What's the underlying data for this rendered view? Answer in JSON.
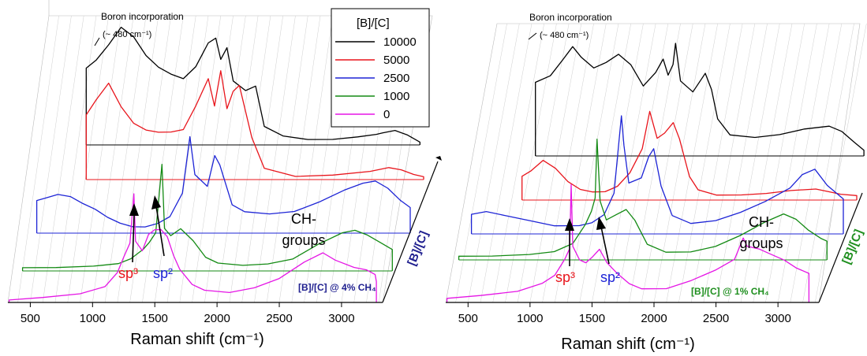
{
  "chart_data": [
    {
      "type": "line",
      "panel": "left",
      "xlabel": "Raman shift (cm⁻¹)",
      "zlabel": "[B]/[C]",
      "xticks": [
        500,
        1000,
        1500,
        2000,
        2500,
        3000
      ],
      "xlim": [
        320,
        3330
      ],
      "legend_title": "[B]/[C]",
      "legend_placement": "top-right",
      "condition_label": "[B]/[C] @ 4% CH₄",
      "condition_color": "#1f1f8f",
      "zlabel_color": "#1f1f8f",
      "annotations": {
        "boron_line1": "Boron incorporation",
        "boron_line2": "(~ 480 cm⁻¹)",
        "sp3": "sp³",
        "sp2": "sp²",
        "ch_line1": "CH-",
        "ch_line2": "groups"
      },
      "series": [
        {
          "name": "10000",
          "color": "#000000",
          "x": [
            620,
            700,
            800,
            900,
            1000,
            1100,
            1200,
            1300,
            1400,
            1500,
            1600,
            1660,
            1700,
            1750,
            1800,
            1900,
            1980,
            2050,
            2200,
            2400,
            2600,
            2800,
            2950,
            3000,
            3100,
            3200,
            3300
          ],
          "y": [
            0.65,
            0.72,
            0.85,
            1.0,
            0.92,
            0.76,
            0.66,
            0.6,
            0.56,
            0.66,
            0.86,
            0.9,
            0.72,
            0.82,
            0.54,
            0.46,
            0.5,
            0.16,
            0.08,
            0.05,
            0.05,
            0.07,
            0.09,
            0.1,
            0.12,
            0.08,
            0.02
          ]
        },
        {
          "name": "5000",
          "color": "#e8141b",
          "x": [
            620,
            700,
            800,
            900,
            1000,
            1100,
            1200,
            1300,
            1400,
            1500,
            1600,
            1650,
            1700,
            1750,
            1800,
            1850,
            1950,
            2050,
            2300,
            2600,
            2900,
            3050,
            3150,
            3250,
            3330
          ],
          "y": [
            0.55,
            0.68,
            0.82,
            0.62,
            0.48,
            0.42,
            0.4,
            0.4,
            0.42,
            0.62,
            0.85,
            0.62,
            0.92,
            0.6,
            0.75,
            0.8,
            0.36,
            0.1,
            0.03,
            0.04,
            0.07,
            0.1,
            0.08,
            0.04,
            0.02
          ]
        },
        {
          "name": "2500",
          "color": "#1d24d6",
          "x": [
            330,
            400,
            500,
            600,
            700,
            800,
            900,
            1000,
            1100,
            1200,
            1300,
            1400,
            1500,
            1560,
            1600,
            1700,
            1760,
            1800,
            1900,
            2000,
            2200,
            2400,
            2600,
            2800,
            2950,
            3050,
            3150,
            3250,
            3330
          ],
          "y": [
            0.28,
            0.3,
            0.33,
            0.31,
            0.25,
            0.2,
            0.13,
            0.08,
            0.05,
            0.05,
            0.08,
            0.14,
            0.34,
            0.82,
            0.5,
            0.4,
            0.66,
            0.58,
            0.24,
            0.18,
            0.16,
            0.18,
            0.26,
            0.36,
            0.42,
            0.44,
            0.38,
            0.28,
            0.22
          ]
        },
        {
          "name": "1000",
          "color": "#138a13",
          "x": [
            330,
            600,
            900,
            1100,
            1200,
            1300,
            1350,
            1400,
            1450,
            1470,
            1520,
            1600,
            1700,
            1800,
            1900,
            2100,
            2300,
            2500,
            2700,
            2900,
            3000,
            3100,
            3200,
            3300
          ],
          "y": [
            0.03,
            0.03,
            0.04,
            0.06,
            0.1,
            0.18,
            0.24,
            0.32,
            0.9,
            0.36,
            0.3,
            0.36,
            0.26,
            0.12,
            0.07,
            0.05,
            0.06,
            0.1,
            0.22,
            0.32,
            0.34,
            0.3,
            0.24,
            0.18
          ]
        },
        {
          "name": "0",
          "color": "#e516e5",
          "x": [
            330,
            600,
            900,
            1100,
            1200,
            1250,
            1300,
            1332,
            1345,
            1400,
            1450,
            1500,
            1550,
            1600,
            1650,
            1700,
            1800,
            1900,
            2100,
            2300,
            2500,
            2700,
            2850,
            2950,
            3100,
            3200,
            3270,
            3280
          ],
          "y": [
            0.02,
            0.04,
            0.07,
            0.13,
            0.25,
            0.38,
            0.5,
            0.92,
            0.52,
            0.44,
            0.58,
            0.62,
            0.62,
            0.56,
            0.4,
            0.28,
            0.15,
            0.1,
            0.08,
            0.12,
            0.2,
            0.34,
            0.42,
            0.36,
            0.3,
            0.28,
            0.24,
            0.18
          ]
        }
      ]
    },
    {
      "type": "line",
      "panel": "right",
      "xlabel": "Raman shift (cm⁻¹)",
      "zlabel": "[B]/[C]",
      "xticks": [
        500,
        1000,
        1500,
        2000,
        2500,
        3000
      ],
      "xlim": [
        320,
        3330
      ],
      "condition_label": "[B]/[C] @ 1% CH₄",
      "condition_color": "#1f8f1f",
      "zlabel_color": "#1f8f1f",
      "annotations": {
        "boron_line1": "Boron incorporation",
        "boron_line2": "(~ 480 cm⁻¹)",
        "sp3": "sp³",
        "sp2": "sp²",
        "ch_line1": "CH-",
        "ch_line2": "groups"
      },
      "series": [
        {
          "name": "10000",
          "color": "#000000",
          "x": [
            630,
            750,
            850,
            930,
            1000,
            1100,
            1200,
            1300,
            1400,
            1500,
            1600,
            1660,
            1700,
            1740,
            1760,
            1800,
            1900,
            2000,
            2050,
            2100,
            2200,
            2400,
            2600,
            2800,
            3000,
            3100,
            3200,
            3280
          ],
          "y": [
            0.55,
            0.6,
            0.72,
            0.82,
            0.74,
            0.66,
            0.7,
            0.76,
            0.68,
            0.52,
            0.62,
            0.72,
            0.6,
            0.68,
            0.84,
            0.56,
            0.48,
            0.62,
            0.5,
            0.28,
            0.16,
            0.14,
            0.16,
            0.2,
            0.22,
            0.18,
            0.1,
            0.04
          ]
        },
        {
          "name": "5000",
          "color": "#e8141b",
          "x": [
            630,
            700,
            800,
            900,
            1000,
            1100,
            1200,
            1300,
            1400,
            1500,
            1600,
            1660,
            1720,
            1780,
            1850,
            1900,
            1980,
            2050,
            2200,
            2400,
            2600,
            2800,
            3000,
            3100,
            3200,
            3330
          ],
          "y": [
            0.18,
            0.22,
            0.3,
            0.24,
            0.14,
            0.08,
            0.06,
            0.06,
            0.1,
            0.2,
            0.38,
            0.66,
            0.46,
            0.5,
            0.58,
            0.46,
            0.18,
            0.08,
            0.04,
            0.04,
            0.05,
            0.07,
            0.08,
            0.06,
            0.04,
            0.03
          ]
        },
        {
          "name": "2500",
          "color": "#1d24d6",
          "x": [
            330,
            450,
            600,
            800,
            1000,
            1200,
            1300,
            1400,
            1480,
            1540,
            1560,
            1600,
            1700,
            1760,
            1800,
            1860,
            1950,
            2100,
            2300,
            2500,
            2700,
            2900,
            3000,
            3100,
            3200,
            3330
          ],
          "y": [
            0.15,
            0.17,
            0.14,
            0.1,
            0.06,
            0.06,
            0.08,
            0.14,
            0.3,
            0.88,
            0.66,
            0.38,
            0.42,
            0.58,
            0.64,
            0.36,
            0.14,
            0.08,
            0.1,
            0.16,
            0.24,
            0.34,
            0.44,
            0.48,
            0.36,
            0.26
          ]
        },
        {
          "name": "1000",
          "color": "#138a13",
          "x": [
            330,
            600,
            900,
            1100,
            1250,
            1350,
            1400,
            1430,
            1445,
            1470,
            1520,
            1600,
            1680,
            1750,
            1850,
            2000,
            2200,
            2400,
            2600,
            2800,
            2950,
            3050,
            3150,
            3250,
            3300
          ],
          "y": [
            0.03,
            0.03,
            0.04,
            0.06,
            0.12,
            0.26,
            0.36,
            0.46,
            0.9,
            0.44,
            0.3,
            0.34,
            0.38,
            0.3,
            0.12,
            0.06,
            0.06,
            0.1,
            0.18,
            0.28,
            0.34,
            0.3,
            0.22,
            0.16,
            0.14
          ]
        },
        {
          "name": "0",
          "color": "#e516e5",
          "x": [
            330,
            600,
            900,
            1100,
            1200,
            1280,
            1320,
            1332,
            1345,
            1400,
            1450,
            1500,
            1560,
            1620,
            1700,
            1800,
            1900,
            2100,
            2300,
            2500,
            2650,
            2720,
            2750,
            2850,
            2950,
            3050,
            3150,
            3250
          ],
          "y": [
            0.03,
            0.05,
            0.08,
            0.14,
            0.2,
            0.32,
            0.4,
            0.88,
            0.42,
            0.32,
            0.3,
            0.34,
            0.4,
            0.3,
            0.22,
            0.14,
            0.1,
            0.1,
            0.16,
            0.24,
            0.32,
            0.48,
            0.42,
            0.4,
            0.36,
            0.32,
            0.26,
            0.22
          ]
        }
      ]
    }
  ]
}
